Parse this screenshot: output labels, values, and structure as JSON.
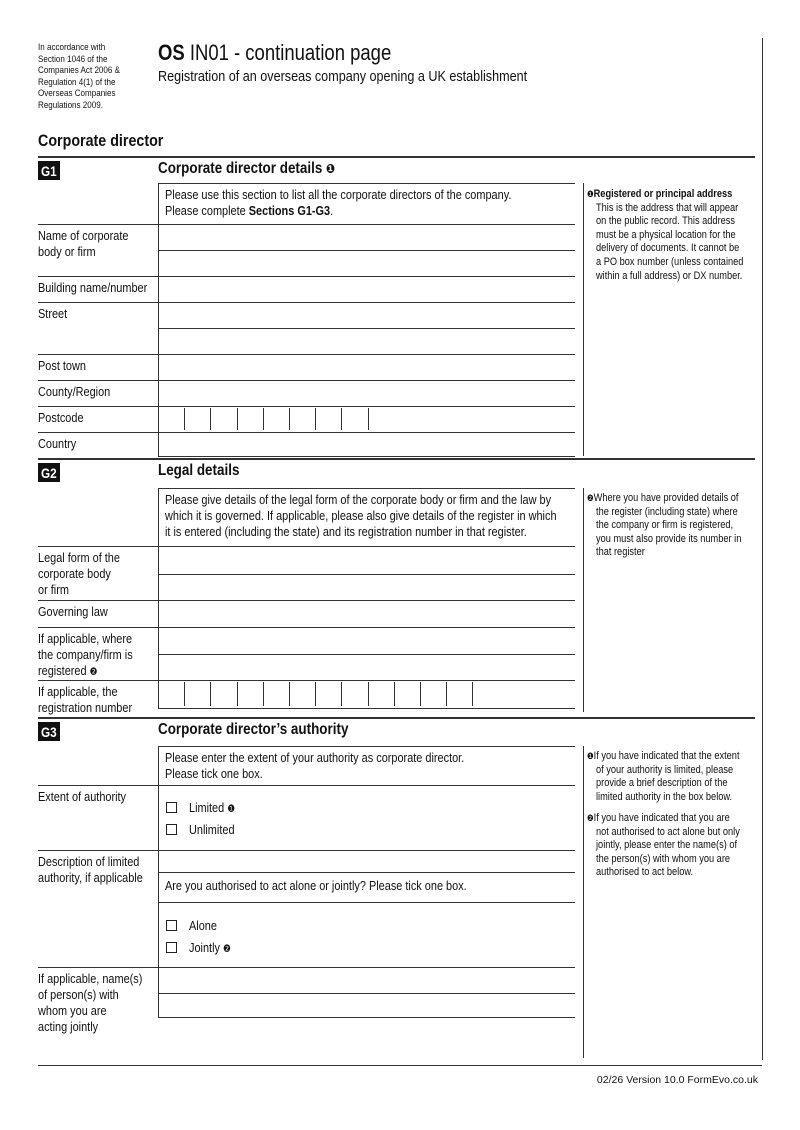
{
  "header": {
    "legal_note": [
      "In accordance with",
      "Section 1046 of the",
      "Companies Act 2006 &",
      "Regulation 4(1) of the",
      "Overseas Companies",
      "Regulations 2009."
    ],
    "form_code": "OS",
    "title": "IN01 - continuation page",
    "subtitle": "Registration of an overseas company opening a UK establishment"
  },
  "part_title": "Corporate director",
  "sections": [
    {
      "id": "G1",
      "heading": "Corporate director details",
      "heading_marker": "❶",
      "intro": [
        [
          "Please use this section to list all the corporate directors of the company."
        ],
        [
          "Please complete ",
          "Sections G1-G3",
          "."
        ]
      ],
      "notes": [
        {
          "marker": "❶",
          "title": "Registered or principal address",
          "lines": [
            "This is the address that will appear",
            "on the public record. This address",
            "must be a physical location for the",
            "delivery of documents. It cannot be",
            "a PO box number (unless contained",
            "within a full address) or DX number."
          ]
        }
      ],
      "fields": [
        {
          "label": [
            "Name of corporate",
            "body or firm"
          ]
        },
        {
          "label": [
            "Building name/number"
          ]
        },
        {
          "label": [
            "Street"
          ]
        },
        {
          "label": [
            "Post town"
          ]
        },
        {
          "label": [
            "County/Region"
          ]
        },
        {
          "label": [
            "Postcode"
          ]
        },
        {
          "label": [
            "Country"
          ]
        }
      ]
    },
    {
      "id": "G2",
      "heading": "Legal details",
      "intro": [
        [
          "Please give details of the legal form of the corporate body or firm and the law by"
        ],
        [
          "which it is governed. If applicable, please also give details of the register in which"
        ],
        [
          "it is entered (including the state) and its registration number in that register."
        ]
      ],
      "notes": [
        {
          "marker": "❷",
          "lines": [
            "Where you have provided details of",
            "the register (including state) where",
            "the company or firm is registered,",
            "you must also provide its number in",
            "that register"
          ]
        }
      ],
      "fields": [
        {
          "label": [
            "Legal form of the",
            "corporate body",
            "or firm"
          ]
        },
        {
          "label": [
            "Governing law"
          ]
        },
        {
          "label": [
            "If applicable, where",
            "the company/firm is",
            "registered"
          ],
          "label_marker": "❷"
        },
        {
          "label": [
            "If applicable, the",
            "registration number"
          ]
        }
      ]
    },
    {
      "id": "G3",
      "heading": "Corporate director’s authority",
      "intro": [
        [
          "Please enter the extent of your authority as corporate director."
        ],
        [
          "Please tick one box."
        ]
      ],
      "notes": [
        {
          "marker": "❶",
          "lines": [
            "If you have indicated that the extent",
            "of your authority is limited, please",
            "provide a brief description of the",
            "limited authority in the box below."
          ]
        },
        {
          "marker": "❷",
          "lines": [
            "If you have indicated that you are",
            "not authorised to act alone but only",
            "jointly, please enter the name(s) of",
            "the person(s) with whom you are",
            "authorised to act below."
          ]
        }
      ],
      "fields": [
        {
          "label": [
            "Extent of authority"
          ],
          "options": [
            {
              "label": "Limited",
              "marker": "❶"
            },
            {
              "label": "Unlimited"
            }
          ]
        },
        {
          "label": [
            "Description of limited",
            "authority, if applicable"
          ],
          "question": "Are you authorised to act alone or jointly? Please tick one box.",
          "options": [
            {
              "label": "Alone"
            },
            {
              "label": "Jointly",
              "marker": "❷"
            }
          ]
        },
        {
          "label": [
            "If applicable, name(s)",
            "of person(s) with",
            "whom you are",
            "acting jointly"
          ]
        }
      ]
    }
  ],
  "footer": "02/26 Version 10.0 FormEvo.co.uk"
}
